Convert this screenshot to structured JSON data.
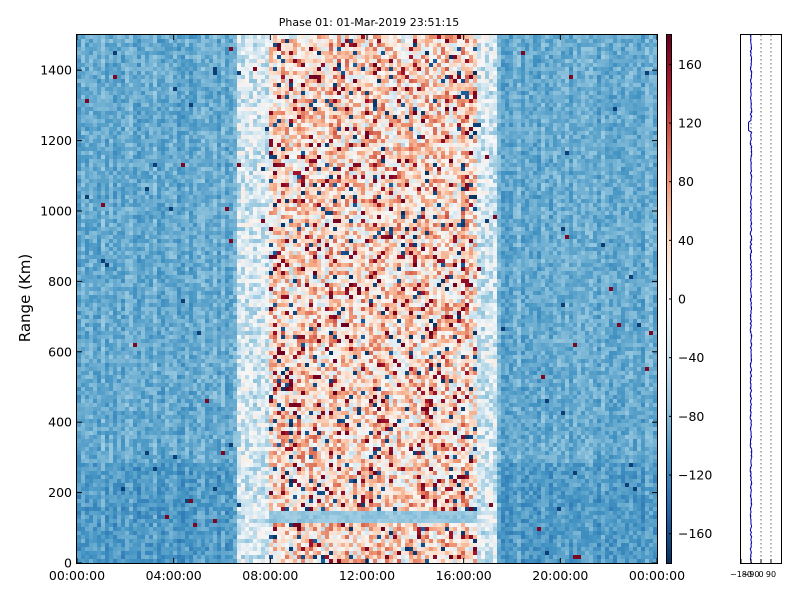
{
  "chart_data": [
    {
      "type": "heatmap",
      "title": "Phase 01: 01-Mar-2019 23:51:15",
      "xlabel": "",
      "ylabel": "Range (Km)",
      "x_tick_labels": [
        "00:00:00",
        "04:00:00",
        "08:00:00",
        "12:00:00",
        "16:00:00",
        "20:00:00",
        "00:00:00"
      ],
      "x_tick_hours": [
        0,
        4,
        8,
        12,
        16,
        20,
        24
      ],
      "xlim_hours": [
        0,
        24
      ],
      "y_ticks": [
        0,
        200,
        400,
        600,
        800,
        1000,
        1200,
        1400
      ],
      "ylim": [
        0,
        1500
      ],
      "colorbar": {
        "colormap": "RdBu_r",
        "vmin": -180,
        "vmax": 180,
        "ticks": [
          160,
          120,
          80,
          40,
          0,
          -40,
          -80,
          -120,
          -160
        ],
        "tick_labels": [
          "160",
          "120",
          "80",
          "40",
          "0",
          "−40",
          "−80",
          "−120",
          "−160"
        ]
      },
      "description_of_field": {
        "background_phase_approx": -90,
        "noisy_band_hours": [
          8,
          16.5
        ],
        "low_band_range_km": [
          110,
          150
        ]
      },
      "grid": false
    },
    {
      "type": "line",
      "title": "",
      "xlim": [
        -180,
        180
      ],
      "ylim": [
        0,
        1500
      ],
      "x_tick_labels": [
        "−180",
        "−90",
        "0",
        "90"
      ],
      "x_ticks": [
        -180,
        -90,
        0,
        90
      ],
      "line_color": "#0000aa",
      "mean_x": -90,
      "grid": true
    }
  ],
  "colors": {
    "line": "#0000aa",
    "axes": "#000000"
  }
}
